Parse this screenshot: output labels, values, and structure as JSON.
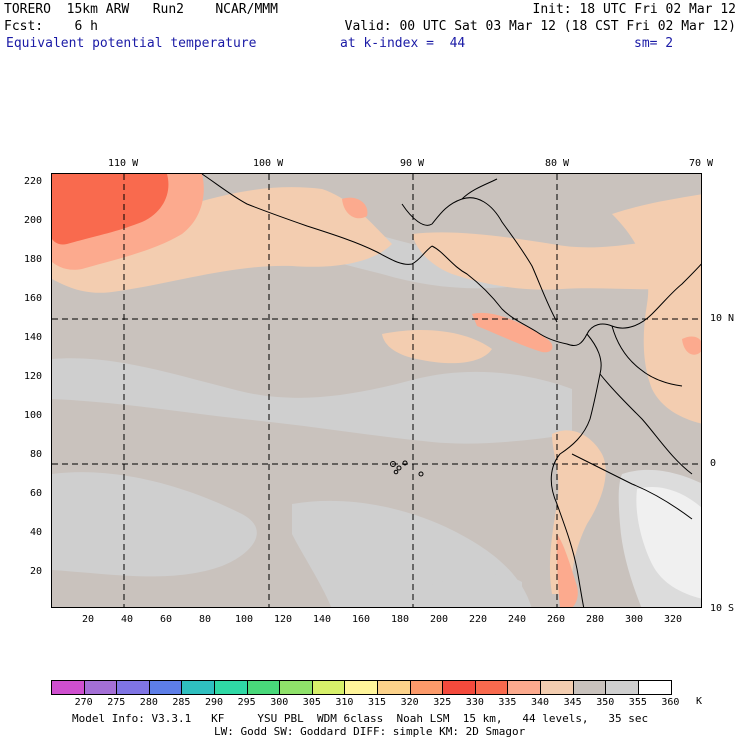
{
  "header": {
    "left_line1": "TORERO  15km ARW   Run2    NCAR/MMM",
    "right_line1": "Init: 18 UTC Fri 02 Mar 12",
    "left_line2": "Fcst:    6 h",
    "right_line2": "Valid: 00 UTC Sat 03 Mar 12 (18 CST Fri 02 Mar 12)",
    "field": "Equivalent potential temperature",
    "level": "at k-index =  44",
    "smoothing": "sm= 2"
  },
  "map": {
    "top_labels": [
      "110 W",
      "100 W",
      "90 W",
      "80 W",
      "70 W"
    ],
    "right_labels": [
      "10 N",
      "0",
      "10 S"
    ],
    "y_ticks": [
      "220",
      "200",
      "180",
      "160",
      "140",
      "120",
      "100",
      "80",
      "60",
      "40",
      "20"
    ],
    "x_ticks": [
      "20",
      "40",
      "60",
      "80",
      "100",
      "120",
      "140",
      "160",
      "180",
      "200",
      "220",
      "240",
      "260",
      "280",
      "300",
      "320"
    ],
    "region_colors": {
      "base": "#c9c2bd",
      "gray_light": "#cfcfcf",
      "gray_lighter": "#dcdcdc",
      "near_white": "#f0f0f0",
      "tan": "#f3cdb0",
      "salmon": "#fcaa8e",
      "red_orange": "#f96a4e",
      "red": "#f44a3c"
    }
  },
  "colorbar": {
    "labels": [
      "270",
      "275",
      "280",
      "285",
      "290",
      "295",
      "300",
      "305",
      "310",
      "315",
      "320",
      "325",
      "330",
      "335",
      "340",
      "345",
      "350",
      "355",
      "360"
    ],
    "unit": "K",
    "colors": [
      "#cf4fcf",
      "#a46fd6",
      "#7f74e4",
      "#5d7ee8",
      "#2fbfbf",
      "#2fd9a5",
      "#49d97a",
      "#8fe26a",
      "#d7f06a",
      "#fff59a",
      "#fcd28a",
      "#fc9a6a",
      "#f44a3c",
      "#f96a4e",
      "#fcaa8e",
      "#f3cdb0",
      "#c9c2bd",
      "#cfcfcf",
      "#ffffff"
    ]
  },
  "footer": {
    "line1": "Model Info: V3.3.1   KF     YSU PBL  WDM 6class  Noah LSM  15 km,   44 levels,   35 sec",
    "line2": "LW: Godd SW: Goddard DIFF: simple KM: 2D Smagor"
  }
}
